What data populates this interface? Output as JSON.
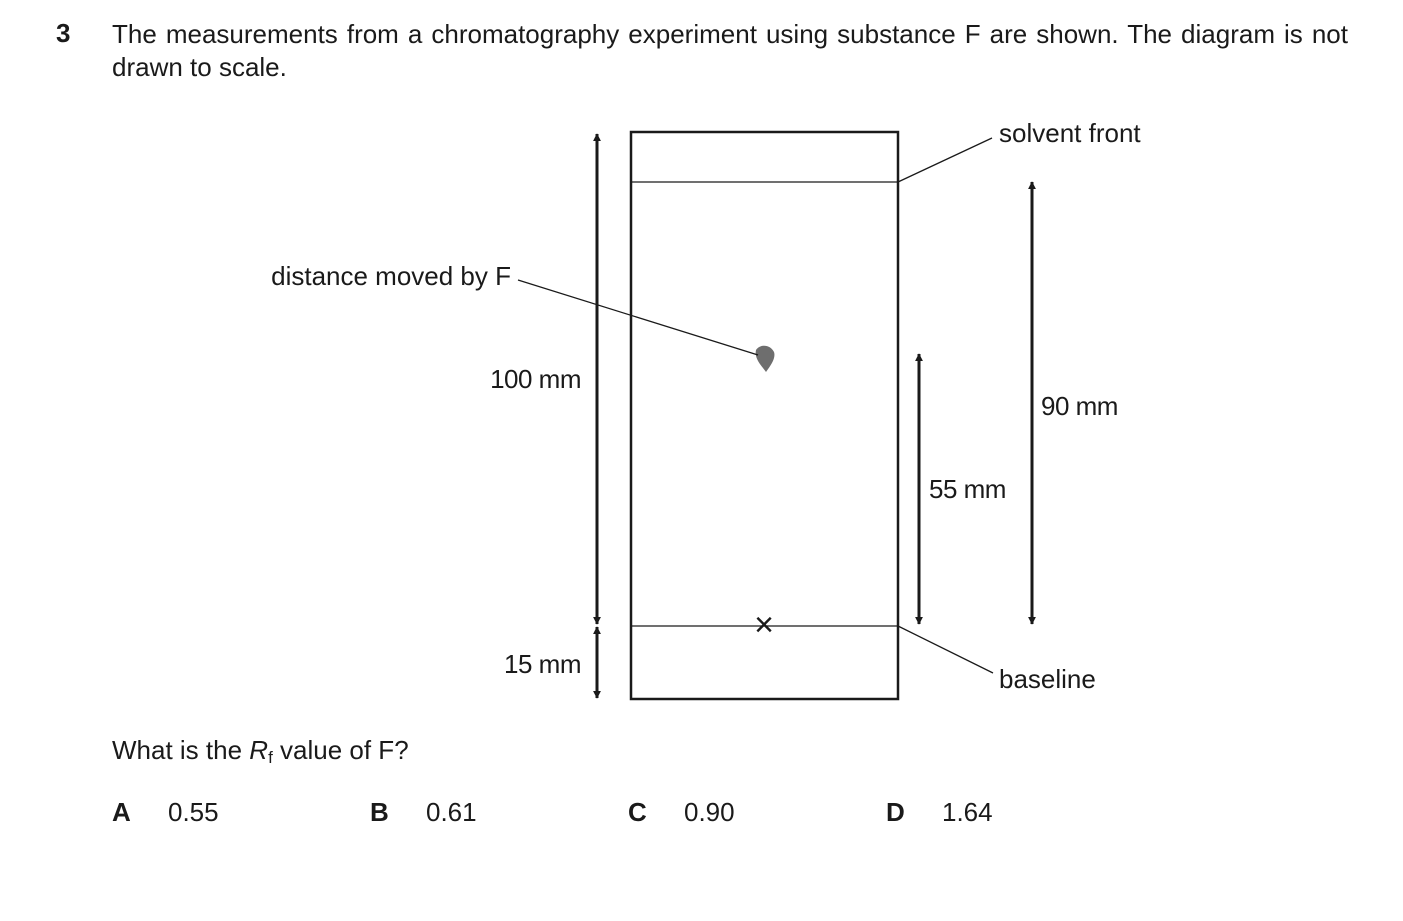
{
  "question": {
    "number": "3",
    "stem": "The measurements from a chromatography experiment using substance F are shown. The diagram is not drawn to scale.",
    "prompt_before": "What is the ",
    "prompt_symbol": "R",
    "prompt_subscript": "f",
    "prompt_after": " value of F?"
  },
  "diagram": {
    "labels": {
      "solvent_front": "solvent front",
      "distance_moved": "distance moved by F",
      "baseline": "baseline"
    },
    "measurements": {
      "total": "100 mm",
      "bottom": "15 mm",
      "spot": "55 mm",
      "solvent": "90 mm"
    },
    "baseline_marker": "×"
  },
  "options": [
    {
      "letter": "A",
      "value": "0.55"
    },
    {
      "letter": "B",
      "value": "0.61"
    },
    {
      "letter": "C",
      "value": "0.90"
    },
    {
      "letter": "D",
      "value": "1.64"
    }
  ]
}
